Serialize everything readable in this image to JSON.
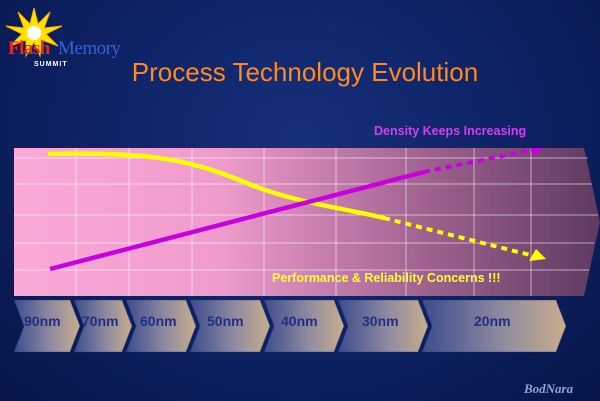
{
  "logo": {
    "word1": "Flash",
    "word2": "Memory",
    "word3": "SUMMIT"
  },
  "title": "Process Technology Evolution",
  "trend_labels": {
    "density": "Density Keeps Increasing",
    "performance": "Performance & Reliability Concerns !!!"
  },
  "nodes": [
    {
      "label": "90nm"
    },
    {
      "label": "70nm"
    },
    {
      "label": "60nm"
    },
    {
      "label": "50nm"
    },
    {
      "label": "40nm"
    },
    {
      "label": "30nm"
    },
    {
      "label": "20nm"
    }
  ],
  "colors": {
    "title": "#ff8a1e",
    "density_line": "#c800e0",
    "performance_line": "#ffff00",
    "node_text": "#1e2f86"
  },
  "watermark": "BodNara"
}
